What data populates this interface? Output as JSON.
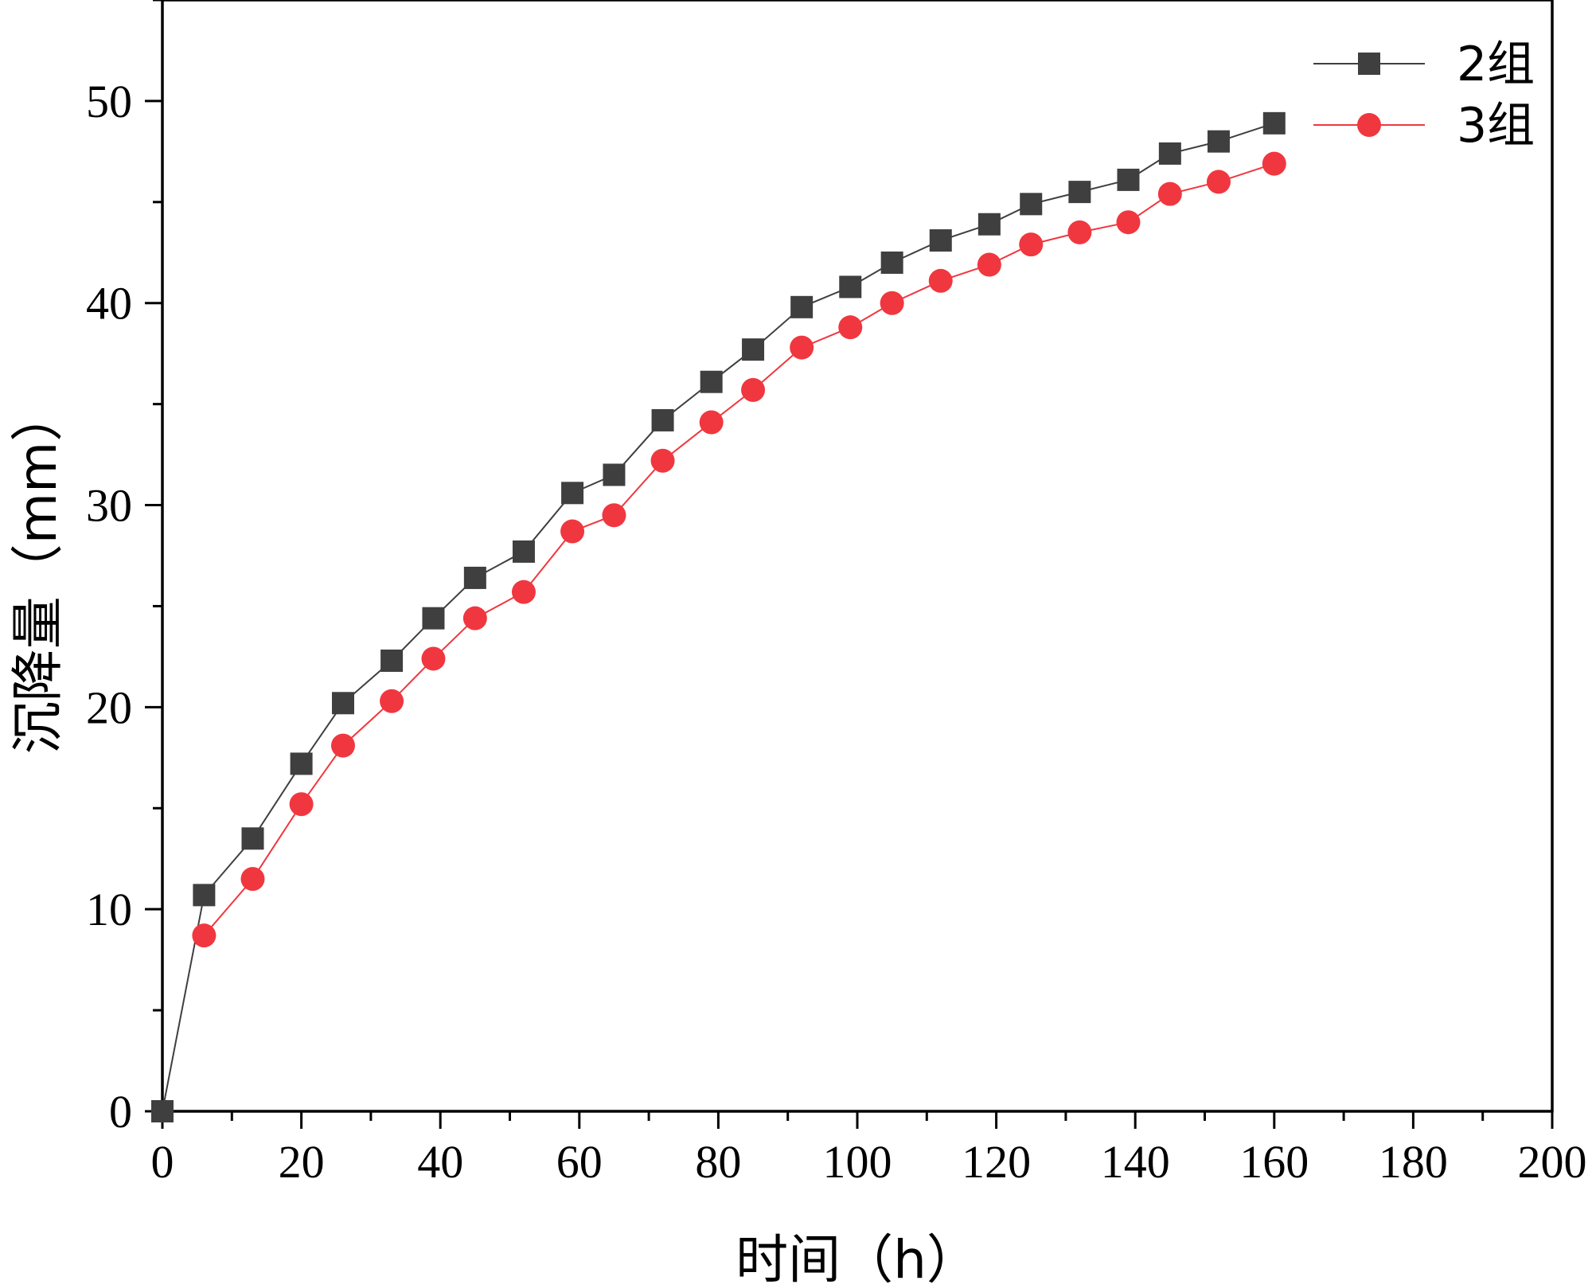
{
  "chart_data": {
    "type": "line",
    "title": "",
    "xlabel": "时间（h）",
    "ylabel": "沉降量（mm）",
    "xlim": [
      0,
      200
    ],
    "ylim": [
      0,
      55
    ],
    "xticks": [
      0,
      20,
      40,
      60,
      80,
      100,
      120,
      140,
      160,
      180,
      200
    ],
    "yticks": [
      0,
      10,
      20,
      30,
      40,
      50
    ],
    "grid": false,
    "legend_position": "top-right",
    "x": [
      0,
      6,
      13,
      20,
      26,
      33,
      39,
      45,
      52,
      59,
      65,
      72,
      79,
      85,
      92,
      99,
      105,
      112,
      119,
      125,
      132,
      139,
      145,
      152,
      160
    ],
    "series": [
      {
        "name": "2组",
        "color": "#3f3f3f",
        "marker": "square",
        "values": [
          0,
          10.7,
          13.5,
          17.2,
          20.2,
          22.3,
          24.4,
          26.4,
          27.7,
          30.6,
          31.5,
          34.2,
          36.1,
          37.7,
          39.8,
          40.8,
          42.0,
          43.1,
          43.9,
          44.9,
          45.5,
          46.1,
          47.4,
          48.0,
          48.9
        ]
      },
      {
        "name": "3组",
        "color": "#f0373f",
        "marker": "circle",
        "values": [
          null,
          8.7,
          11.5,
          15.2,
          18.1,
          20.3,
          22.4,
          24.4,
          25.7,
          28.7,
          29.5,
          32.2,
          34.1,
          35.7,
          37.8,
          38.8,
          40.0,
          41.1,
          41.9,
          42.9,
          43.5,
          44.0,
          45.4,
          46.0,
          46.9
        ]
      }
    ]
  }
}
